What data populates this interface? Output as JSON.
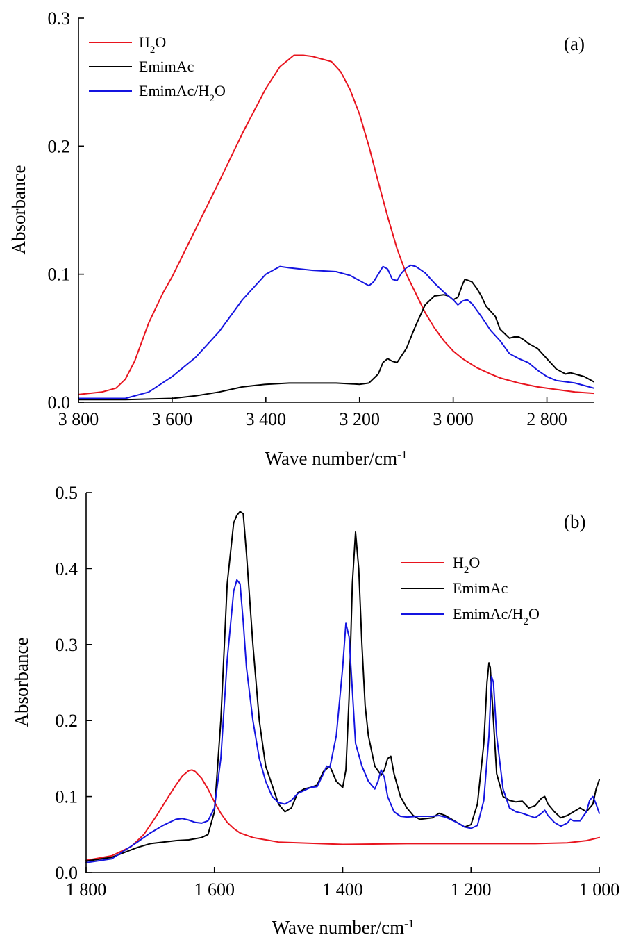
{
  "figure": {
    "panels": [
      {
        "label": "(a)",
        "xlabel": "Wave number/cm",
        "xlabel_sup": "-1",
        "ylabel": "Absorbance",
        "xticks": [
          {
            "v": 3800,
            "t": "3 800"
          },
          {
            "v": 3600,
            "t": "3 600"
          },
          {
            "v": 3400,
            "t": "3 400"
          },
          {
            "v": 3200,
            "t": "3 200"
          },
          {
            "v": 3000,
            "t": "3 000"
          },
          {
            "v": 2800,
            "t": "2 800"
          }
        ],
        "yticks": [
          {
            "v": 0.0,
            "t": "0.0"
          },
          {
            "v": 0.1,
            "t": "0.1"
          },
          {
            "v": 0.2,
            "t": "0.2"
          },
          {
            "v": 0.3,
            "t": "0.3"
          }
        ],
        "legend": [
          {
            "name": "H2O",
            "color": "#e8141e"
          },
          {
            "name": "EmimAc",
            "color": "#000000"
          },
          {
            "name": "EmimAc/H2O",
            "color": "#1414e0"
          }
        ]
      },
      {
        "label": "(b)",
        "xlabel": "Wave number/cm",
        "xlabel_sup": "-1",
        "ylabel": "Absorbance",
        "xticks": [
          {
            "v": 1800,
            "t": "1 800"
          },
          {
            "v": 1600,
            "t": "1 600"
          },
          {
            "v": 1400,
            "t": "1 400"
          },
          {
            "v": 1200,
            "t": "1 200"
          },
          {
            "v": 1000,
            "t": "1 000"
          }
        ],
        "yticks": [
          {
            "v": 0.0,
            "t": "0.0"
          },
          {
            "v": 0.1,
            "t": "0.1"
          },
          {
            "v": 0.2,
            "t": "0.2"
          },
          {
            "v": 0.3,
            "t": "0.3"
          },
          {
            "v": 0.4,
            "t": "0.4"
          },
          {
            "v": 0.5,
            "t": "0.5"
          }
        ],
        "legend": [
          {
            "name": "H2O",
            "color": "#e8141e"
          },
          {
            "name": "EmimAc",
            "color": "#000000"
          },
          {
            "name": "EmimAc/H2O",
            "color": "#1414e0"
          }
        ]
      }
    ]
  },
  "chart_data": [
    {
      "type": "line",
      "title": "(a)",
      "xlabel": "Wave number/cm-1",
      "ylabel": "Absorbance",
      "xlim": [
        3800,
        2700
      ],
      "ylim": [
        0,
        0.3
      ],
      "series": [
        {
          "name": "H2O",
          "color": "#e8141e",
          "x": [
            3800,
            3750,
            3720,
            3700,
            3680,
            3650,
            3620,
            3600,
            3550,
            3500,
            3450,
            3400,
            3370,
            3340,
            3320,
            3300,
            3280,
            3260,
            3240,
            3220,
            3200,
            3180,
            3160,
            3140,
            3120,
            3100,
            3080,
            3060,
            3040,
            3020,
            3000,
            2980,
            2950,
            2920,
            2900,
            2860,
            2820,
            2780,
            2740,
            2700
          ],
          "y": [
            0.006,
            0.008,
            0.011,
            0.018,
            0.032,
            0.062,
            0.085,
            0.098,
            0.135,
            0.172,
            0.21,
            0.245,
            0.262,
            0.271,
            0.271,
            0.27,
            0.268,
            0.266,
            0.258,
            0.244,
            0.225,
            0.2,
            0.172,
            0.145,
            0.12,
            0.1,
            0.085,
            0.07,
            0.058,
            0.048,
            0.04,
            0.034,
            0.027,
            0.022,
            0.019,
            0.015,
            0.012,
            0.01,
            0.008,
            0.007
          ]
        },
        {
          "name": "EmimAc",
          "color": "#000000",
          "x": [
            3800,
            3700,
            3600,
            3550,
            3500,
            3450,
            3400,
            3350,
            3300,
            3250,
            3200,
            3180,
            3160,
            3150,
            3140,
            3130,
            3120,
            3100,
            3080,
            3060,
            3040,
            3020,
            3010,
            3000,
            2990,
            2980,
            2975,
            2960,
            2950,
            2940,
            2930,
            2920,
            2910,
            2900,
            2880,
            2870,
            2860,
            2850,
            2840,
            2820,
            2800,
            2780,
            2760,
            2750,
            2740,
            2720,
            2700
          ],
          "y": [
            0.002,
            0.002,
            0.003,
            0.005,
            0.008,
            0.012,
            0.014,
            0.015,
            0.015,
            0.015,
            0.014,
            0.015,
            0.022,
            0.031,
            0.034,
            0.032,
            0.031,
            0.042,
            0.06,
            0.076,
            0.083,
            0.084,
            0.083,
            0.08,
            0.082,
            0.092,
            0.096,
            0.094,
            0.089,
            0.083,
            0.075,
            0.071,
            0.067,
            0.057,
            0.05,
            0.051,
            0.051,
            0.049,
            0.046,
            0.042,
            0.034,
            0.026,
            0.022,
            0.023,
            0.022,
            0.02,
            0.016
          ]
        },
        {
          "name": "EmimAc/H2O",
          "color": "#1414e0",
          "x": [
            3800,
            3700,
            3650,
            3600,
            3550,
            3500,
            3450,
            3400,
            3370,
            3350,
            3300,
            3250,
            3220,
            3200,
            3180,
            3170,
            3160,
            3150,
            3140,
            3130,
            3120,
            3110,
            3100,
            3090,
            3080,
            3060,
            3040,
            3020,
            3000,
            2990,
            2980,
            2970,
            2960,
            2950,
            2940,
            2920,
            2900,
            2880,
            2860,
            2840,
            2820,
            2800,
            2780,
            2760,
            2740,
            2720,
            2700
          ],
          "y": [
            0.003,
            0.003,
            0.008,
            0.02,
            0.035,
            0.055,
            0.08,
            0.1,
            0.106,
            0.105,
            0.103,
            0.102,
            0.099,
            0.095,
            0.091,
            0.094,
            0.1,
            0.106,
            0.104,
            0.096,
            0.095,
            0.101,
            0.105,
            0.107,
            0.106,
            0.101,
            0.093,
            0.086,
            0.08,
            0.076,
            0.079,
            0.08,
            0.077,
            0.072,
            0.067,
            0.056,
            0.048,
            0.038,
            0.034,
            0.031,
            0.025,
            0.02,
            0.017,
            0.016,
            0.015,
            0.013,
            0.011
          ]
        }
      ]
    },
    {
      "type": "line",
      "title": "(b)",
      "xlabel": "Wave number/cm-1",
      "ylabel": "Absorbance",
      "xlim": [
        1800,
        1000
      ],
      "ylim": [
        0,
        0.5
      ],
      "series": [
        {
          "name": "H2O",
          "color": "#e8141e",
          "x": [
            1800,
            1760,
            1730,
            1710,
            1690,
            1670,
            1660,
            1650,
            1640,
            1635,
            1630,
            1620,
            1610,
            1600,
            1590,
            1580,
            1570,
            1560,
            1540,
            1500,
            1400,
            1300,
            1200,
            1100,
            1050,
            1020,
            1000
          ],
          "y": [
            0.016,
            0.022,
            0.034,
            0.05,
            0.075,
            0.102,
            0.115,
            0.127,
            0.134,
            0.135,
            0.133,
            0.124,
            0.11,
            0.093,
            0.078,
            0.066,
            0.058,
            0.052,
            0.046,
            0.04,
            0.037,
            0.038,
            0.038,
            0.038,
            0.039,
            0.042,
            0.046
          ]
        },
        {
          "name": "EmimAc",
          "color": "#000000",
          "x": [
            1800,
            1760,
            1720,
            1700,
            1680,
            1660,
            1640,
            1620,
            1610,
            1600,
            1590,
            1580,
            1570,
            1565,
            1560,
            1555,
            1550,
            1540,
            1530,
            1520,
            1500,
            1490,
            1480,
            1470,
            1460,
            1450,
            1440,
            1430,
            1420,
            1410,
            1400,
            1395,
            1390,
            1385,
            1380,
            1375,
            1370,
            1365,
            1360,
            1350,
            1340,
            1335,
            1330,
            1325,
            1320,
            1310,
            1300,
            1290,
            1280,
            1260,
            1250,
            1240,
            1220,
            1210,
            1200,
            1190,
            1180,
            1175,
            1172,
            1170,
            1165,
            1160,
            1150,
            1140,
            1130,
            1120,
            1110,
            1100,
            1090,
            1085,
            1080,
            1070,
            1060,
            1050,
            1040,
            1030,
            1020,
            1010,
            1005,
            1000
          ],
          "y": [
            0.015,
            0.02,
            0.033,
            0.038,
            0.04,
            0.042,
            0.043,
            0.046,
            0.05,
            0.08,
            0.2,
            0.38,
            0.46,
            0.47,
            0.475,
            0.472,
            0.42,
            0.3,
            0.2,
            0.14,
            0.09,
            0.08,
            0.085,
            0.105,
            0.11,
            0.112,
            0.115,
            0.133,
            0.14,
            0.12,
            0.112,
            0.135,
            0.23,
            0.38,
            0.448,
            0.4,
            0.3,
            0.22,
            0.18,
            0.14,
            0.128,
            0.135,
            0.15,
            0.153,
            0.13,
            0.1,
            0.085,
            0.075,
            0.07,
            0.072,
            0.078,
            0.075,
            0.065,
            0.06,
            0.063,
            0.09,
            0.17,
            0.25,
            0.276,
            0.27,
            0.2,
            0.13,
            0.1,
            0.095,
            0.093,
            0.094,
            0.085,
            0.088,
            0.098,
            0.1,
            0.09,
            0.08,
            0.072,
            0.075,
            0.08,
            0.085,
            0.08,
            0.09,
            0.11,
            0.122
          ]
        },
        {
          "name": "EmimAc/H2O",
          "color": "#1414e0",
          "x": [
            1800,
            1760,
            1720,
            1700,
            1680,
            1660,
            1650,
            1640,
            1630,
            1620,
            1610,
            1600,
            1590,
            1580,
            1570,
            1565,
            1560,
            1555,
            1550,
            1540,
            1530,
            1520,
            1510,
            1500,
            1490,
            1480,
            1470,
            1460,
            1450,
            1440,
            1430,
            1425,
            1420,
            1410,
            1400,
            1395,
            1390,
            1385,
            1380,
            1370,
            1360,
            1350,
            1345,
            1340,
            1335,
            1330,
            1320,
            1310,
            1300,
            1280,
            1260,
            1250,
            1240,
            1220,
            1210,
            1200,
            1190,
            1180,
            1172,
            1168,
            1165,
            1160,
            1150,
            1140,
            1130,
            1120,
            1110,
            1100,
            1090,
            1085,
            1080,
            1070,
            1060,
            1050,
            1045,
            1040,
            1030,
            1020,
            1015,
            1010,
            1005,
            1000
          ],
          "y": [
            0.013,
            0.018,
            0.04,
            0.052,
            0.062,
            0.07,
            0.071,
            0.069,
            0.066,
            0.065,
            0.068,
            0.085,
            0.15,
            0.28,
            0.37,
            0.385,
            0.38,
            0.33,
            0.27,
            0.2,
            0.15,
            0.12,
            0.1,
            0.092,
            0.09,
            0.095,
            0.104,
            0.108,
            0.112,
            0.113,
            0.13,
            0.14,
            0.138,
            0.18,
            0.27,
            0.328,
            0.31,
            0.24,
            0.17,
            0.14,
            0.12,
            0.11,
            0.12,
            0.135,
            0.125,
            0.1,
            0.08,
            0.074,
            0.073,
            0.074,
            0.074,
            0.075,
            0.073,
            0.065,
            0.06,
            0.058,
            0.062,
            0.095,
            0.18,
            0.258,
            0.25,
            0.18,
            0.11,
            0.085,
            0.08,
            0.078,
            0.075,
            0.072,
            0.078,
            0.082,
            0.075,
            0.066,
            0.061,
            0.065,
            0.07,
            0.068,
            0.068,
            0.08,
            0.095,
            0.1,
            0.09,
            0.078
          ]
        }
      ]
    }
  ]
}
